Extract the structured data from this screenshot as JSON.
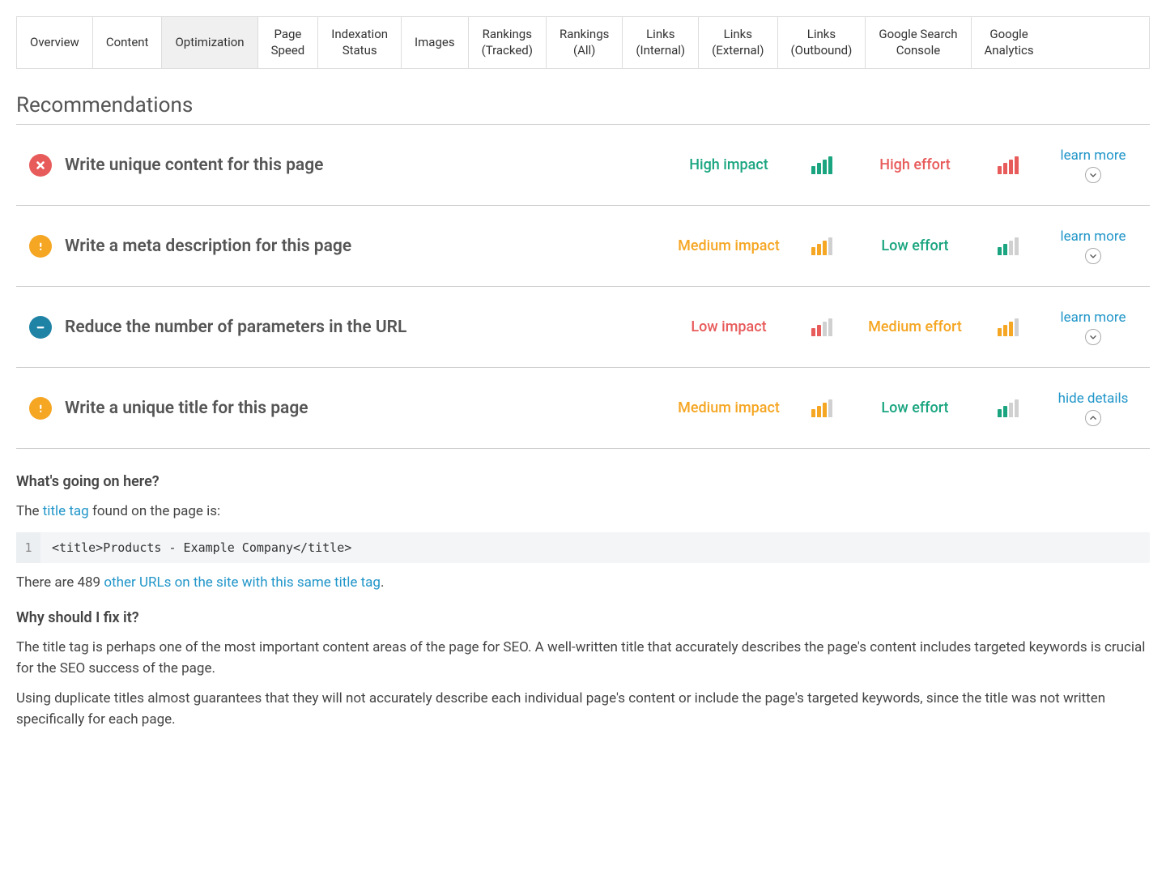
{
  "colors": {
    "green": "#1aa580",
    "red": "#e85b5b",
    "orange": "#f5a623",
    "blue": "#1f83a6",
    "link": "#2196c9",
    "bar_inactive": "#d0d0d0"
  },
  "tabs": [
    {
      "label": "Overview",
      "active": false
    },
    {
      "label": "Content",
      "active": false
    },
    {
      "label": "Optimization",
      "active": true
    },
    {
      "label": "Page Speed",
      "active": false
    },
    {
      "label": "Indexation Status",
      "active": false
    },
    {
      "label": "Images",
      "active": false
    },
    {
      "label": "Rankings (Tracked)",
      "active": false
    },
    {
      "label": "Rankings (All)",
      "active": false
    },
    {
      "label": "Links (Internal)",
      "active": false
    },
    {
      "label": "Links (External)",
      "active": false
    },
    {
      "label": "Links (Outbound)",
      "active": false
    },
    {
      "label": "Google Search Console",
      "active": false
    },
    {
      "label": "Google Analytics",
      "active": false
    }
  ],
  "section_title": "Recommendations",
  "recommendations": [
    {
      "icon": "x",
      "icon_bg": "#e85b5b",
      "title": "Write unique content for this page",
      "impact_label": "High impact",
      "impact_color": "#1aa580",
      "impact_bars": 4,
      "effort_label": "High effort",
      "effort_color": "#e85b5b",
      "effort_bars": 4,
      "link_label": "learn more",
      "expanded": false
    },
    {
      "icon": "!",
      "icon_bg": "#f5a623",
      "title": "Write a meta description for this page",
      "impact_label": "Medium impact",
      "impact_color": "#f5a623",
      "impact_bars": 3,
      "effort_label": "Low effort",
      "effort_color": "#1aa580",
      "effort_bars": 2,
      "link_label": "learn more",
      "expanded": false
    },
    {
      "icon": "-",
      "icon_bg": "#1f83a6",
      "title": "Reduce the number of parameters in the URL",
      "impact_label": "Low impact",
      "impact_color": "#e85b5b",
      "impact_bars": 2,
      "effort_label": "Medium effort",
      "effort_color": "#f5a623",
      "effort_bars": 3,
      "link_label": "learn more",
      "expanded": false
    },
    {
      "icon": "!",
      "icon_bg": "#f5a623",
      "title": "Write a unique title for this page",
      "impact_label": "Medium impact",
      "impact_color": "#f5a623",
      "impact_bars": 3,
      "effort_label": "Low effort",
      "effort_color": "#1aa580",
      "effort_bars": 2,
      "link_label": "hide details",
      "expanded": true
    }
  ],
  "details": {
    "heading1": "What's going on here?",
    "p1_pre": "The ",
    "p1_link": "title tag",
    "p1_post": " found on the page is:",
    "code_line": "1",
    "code_text": "<title>Products - Example Company</title>",
    "p2_pre": "There are 489 ",
    "p2_link": "other URLs on the site with this same title tag",
    "p2_post": ".",
    "heading2": "Why should I fix it?",
    "p3": "The title tag is perhaps one of the most important content areas of the page for SEO. A well-written title that accurately describes the page's content includes targeted keywords is crucial for the SEO success of the page.",
    "p4": "Using duplicate titles almost guarantees that they will not accurately describe each individual page's content or include the page's targeted keywords, since the title was not written specifically for each page."
  }
}
